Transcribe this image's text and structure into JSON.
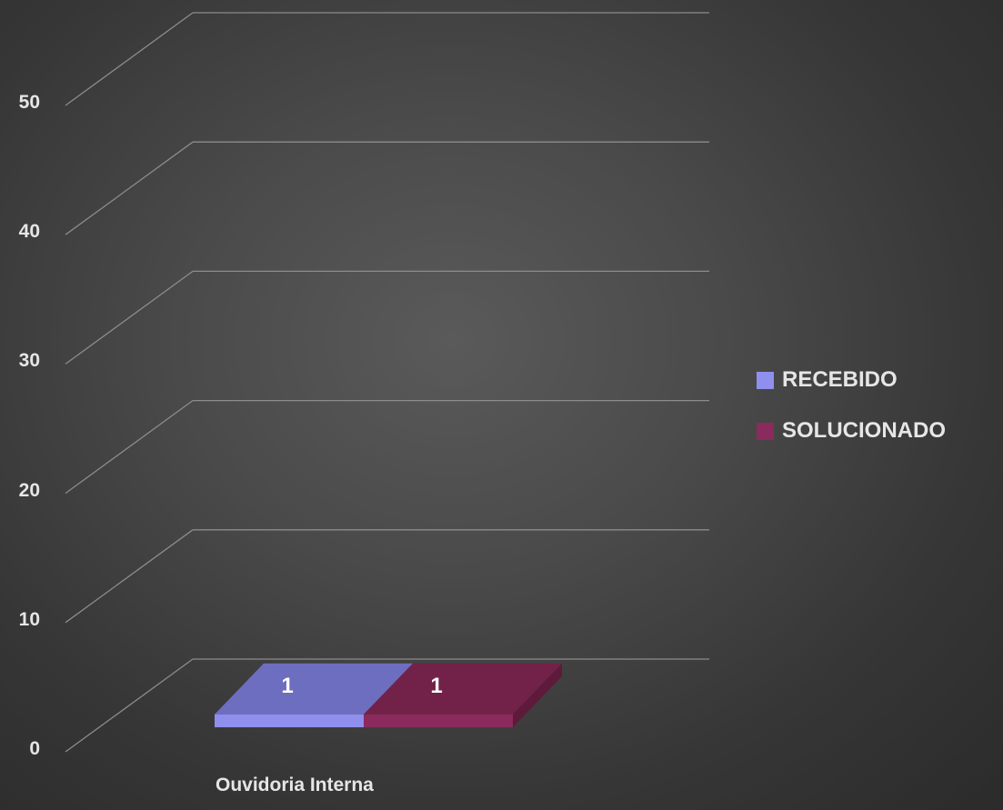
{
  "chart_data": {
    "type": "bar",
    "style": "3d",
    "categories": [
      "Ouvidoria Interna"
    ],
    "series": [
      {
        "name": "RECEBIDO",
        "values": [
          1
        ],
        "color": "#8f8fee",
        "top_color": "#6e6ec0",
        "side_color": "#5c5cad"
      },
      {
        "name": "SOLUCIONADO",
        "values": [
          1
        ],
        "color": "#8b2a5c",
        "top_color": "#722248",
        "side_color": "#5e1a3b"
      }
    ],
    "ylim": [
      0,
      50
    ],
    "yticks": [
      0,
      10,
      20,
      30,
      40,
      50
    ],
    "grid": true,
    "legend_position": "right",
    "title": "",
    "xlabel": "",
    "ylabel": ""
  },
  "background_color": "#4a4a4a",
  "gridline_color": "#8c8c8c",
  "label_color": "#e6e6e6"
}
